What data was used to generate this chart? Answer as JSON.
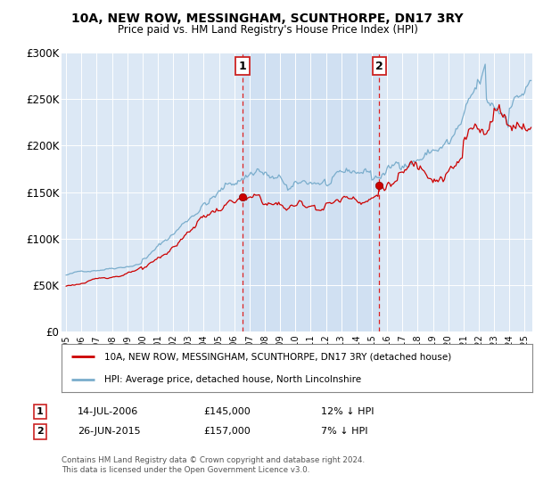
{
  "title": "10A, NEW ROW, MESSINGHAM, SCUNTHORPE, DN17 3RY",
  "subtitle": "Price paid vs. HM Land Registry's House Price Index (HPI)",
  "legend_label_red": "10A, NEW ROW, MESSINGHAM, SCUNTHORPE, DN17 3RY (detached house)",
  "legend_label_blue": "HPI: Average price, detached house, North Lincolnshire",
  "note1_date": "14-JUL-2006",
  "note1_price": "£145,000",
  "note1_hpi": "12% ↓ HPI",
  "note2_date": "26-JUN-2015",
  "note2_price": "£157,000",
  "note2_hpi": "7% ↓ HPI",
  "footer": "Contains HM Land Registry data © Crown copyright and database right 2024.\nThis data is licensed under the Open Government Licence v3.0.",
  "ylim": [
    0,
    300000
  ],
  "yticks": [
    0,
    50000,
    100000,
    150000,
    200000,
    250000,
    300000
  ],
  "ytick_labels": [
    "£0",
    "£50K",
    "£100K",
    "£150K",
    "£200K",
    "£250K",
    "£300K"
  ],
  "plot_bg_color": "#dce8f5",
  "shade_color": "#c8dcf0",
  "red_color": "#cc0000",
  "blue_color": "#7aadcc",
  "marker1_year": 2006.54,
  "marker1_price": 145000,
  "marker2_year": 2015.49,
  "marker2_price": 157000,
  "vline1_year": 2006.54,
  "vline2_year": 2015.49,
  "xlim_left": 1994.7,
  "xlim_right": 2025.5
}
